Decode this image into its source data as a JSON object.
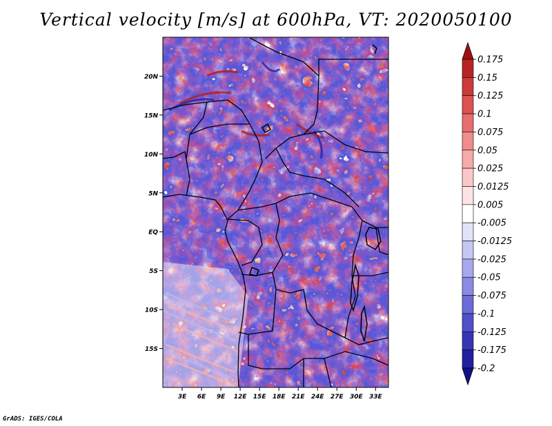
{
  "title": "Vertical velocity [m/s] at 600hPa, VT: 2020050100",
  "footer": "GrADS: IGES/COLA",
  "map": {
    "lat_range": [
      -20,
      25
    ],
    "lon_range": [
      0,
      35
    ],
    "lat_ticks": [
      "20N",
      "15N",
      "10N",
      "5N",
      "EQ",
      "5S",
      "10S",
      "15S"
    ],
    "lon_ticks": [
      "3E",
      "6E",
      "9E",
      "12E",
      "15E",
      "18E",
      "21E",
      "24E",
      "27E",
      "30E",
      "33E"
    ]
  },
  "colorbar": {
    "labels": [
      "0.175",
      "0.15",
      "0.125",
      "0.1",
      "0.075",
      "0.05",
      "0.025",
      "0.0125",
      "0.005",
      "-0.005",
      "-0.0125",
      "-0.025",
      "-0.05",
      "-0.075",
      "-0.1",
      "-0.125",
      "-0.175",
      "-0.2"
    ],
    "colors": [
      "#a01010",
      "#b82424",
      "#cc3a3a",
      "#dc5252",
      "#e86e6e",
      "#f08c8c",
      "#f6aaaa",
      "#fac8c8",
      "#fde4e4",
      "#ffffff",
      "#e2e2fa",
      "#c6c6f4",
      "#a8a8ee",
      "#8a8ae4",
      "#6c6cd8",
      "#5050c8",
      "#3636b4",
      "#2020a0",
      "#10108a"
    ]
  }
}
